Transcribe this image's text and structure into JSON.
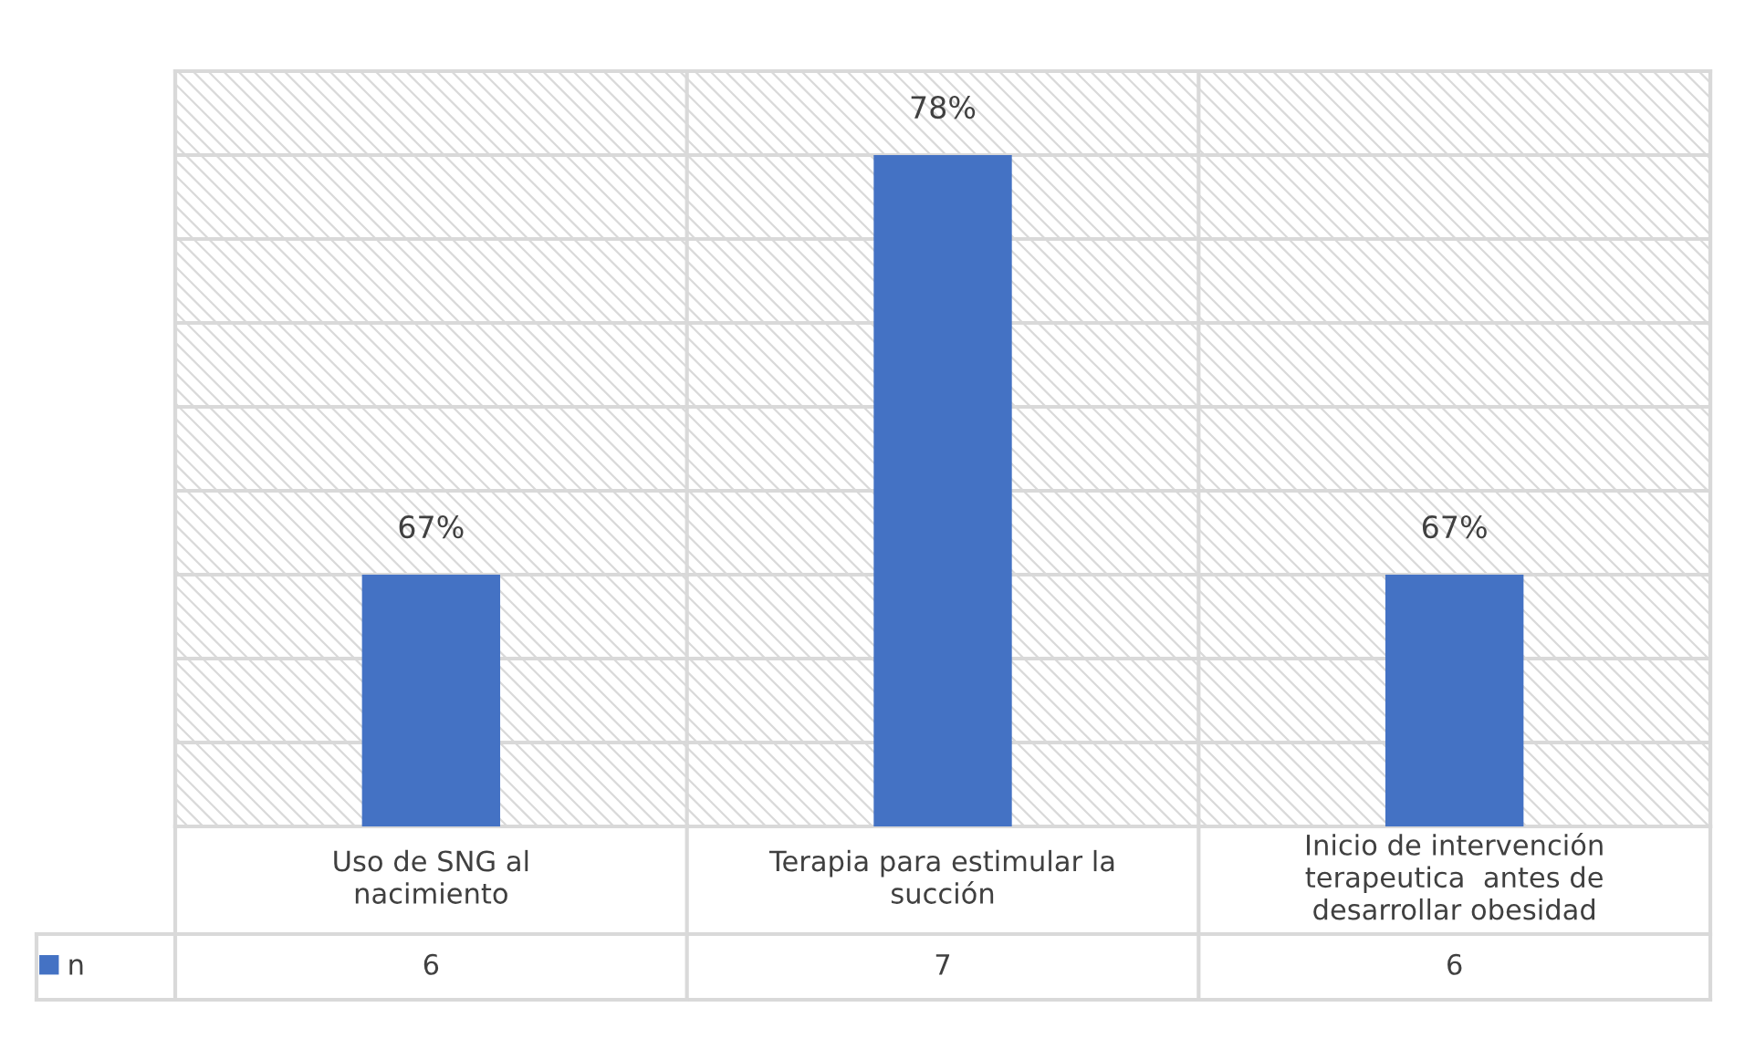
{
  "chart_data": {
    "type": "bar",
    "categories": [
      "Uso de SNG al nacimiento",
      "Terapia para estimular la succión",
      "Inicio de intervención terapeutica  antes de desarrollar obesidad"
    ],
    "series": [
      {
        "name": "n",
        "color": "#4472c4",
        "values": [
          6,
          7,
          6
        ]
      }
    ],
    "ylim": [
      5.4,
      7.2
    ],
    "yticks": [
      {
        "value": 5.6,
        "label": null
      },
      {
        "value": 5.8,
        "label": null
      },
      {
        "value": 6.0,
        "label": null
      },
      {
        "value": 6.2,
        "label": null
      },
      {
        "value": 6.4,
        "label": null
      },
      {
        "value": 6.6,
        "label": null
      },
      {
        "value": 6.8,
        "label": null
      },
      {
        "value": 7.0,
        "label": null
      }
    ],
    "annotations": [
      {
        "text": "67%",
        "x": "Uso de SNG al nacimiento",
        "y": 6
      },
      {
        "text": "78%",
        "x": "Terapia para estimular la succión",
        "y": 7
      },
      {
        "text": "67%",
        "x": "Inicio de intervención terapeutica  antes de desarrollar obesidad",
        "y": 6
      }
    ],
    "data_labels": true,
    "grid": "y",
    "legend": "bottom left",
    "tick_labels": "x"
  }
}
